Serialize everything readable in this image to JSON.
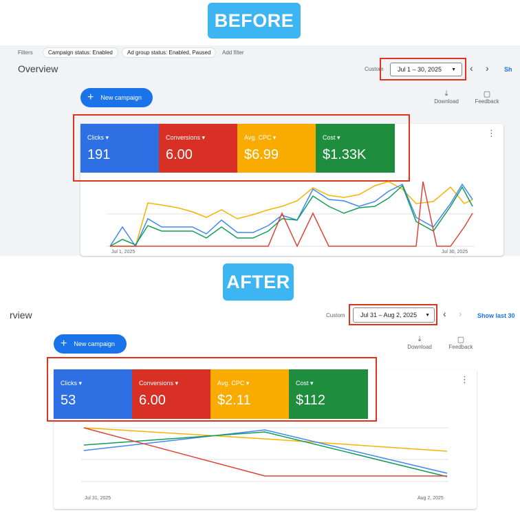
{
  "before": {
    "badge": "BEFORE",
    "filters": {
      "label": "Filters",
      "chips": [
        "Campaign status: Enabled",
        "Ad group status: Enabled, Paused"
      ],
      "add": "Add filter"
    },
    "title": "Overview",
    "date_label": "Custom",
    "date_range": "Jul 1 – 30, 2025",
    "show": "Sh",
    "new_campaign": "New campaign",
    "download": "Download",
    "feedback": "Feedback",
    "metrics": [
      {
        "name": "Clicks ▾",
        "value": "191"
      },
      {
        "name": "Conversions ▾",
        "value": "6.00"
      },
      {
        "name": "Avg. CPC ▾",
        "value": "$6.99"
      },
      {
        "name": "Cost ▾",
        "value": "$1.33K"
      }
    ],
    "x_start": "Jul 1, 2025",
    "x_end": "Jul 30, 2025"
  },
  "after": {
    "badge": "AFTER",
    "title": "rview",
    "date_label": "Custom",
    "date_range": "Jul 31 – Aug 2, 2025",
    "show": "Show last 30",
    "new_campaign": "New campaign",
    "download": "Download",
    "feedback": "Feedback",
    "metrics": [
      {
        "name": "Clicks ▾",
        "value": "53"
      },
      {
        "name": "Conversions ▾",
        "value": "6.00"
      },
      {
        "name": "Avg. CPC ▾",
        "value": "$2.11"
      },
      {
        "name": "Cost ▾",
        "value": "$112"
      }
    ],
    "x_start": "Jul 31, 2025",
    "x_end": "Aug 2, 2025"
  }
}
